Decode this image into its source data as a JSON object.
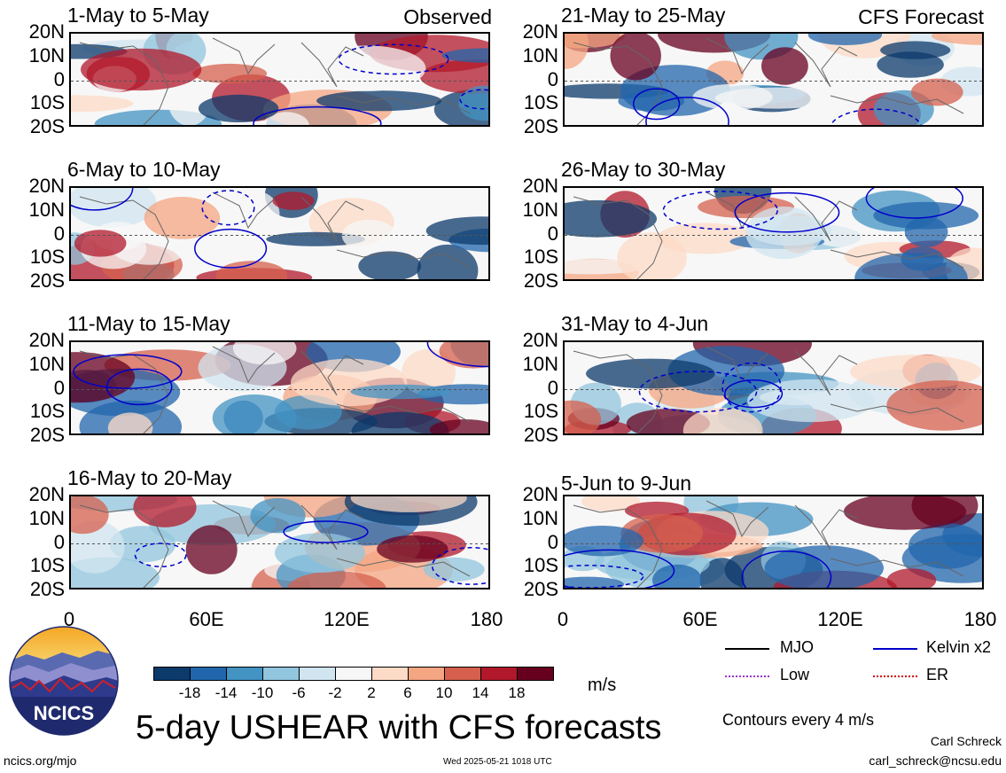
{
  "panels": {
    "observed": [
      {
        "title": "1-May to 5-May",
        "tag": "Observed"
      },
      {
        "title": "6-May to 10-May"
      },
      {
        "title": "11-May to 15-May"
      },
      {
        "title": "16-May to 20-May"
      }
    ],
    "forecast": [
      {
        "title": "21-May to 25-May",
        "tag": "CFS Forecast"
      },
      {
        "title": "26-May to 30-May"
      },
      {
        "title": "31-May to 4-Jun"
      },
      {
        "title": "5-Jun to 9-Jun"
      }
    ]
  },
  "lat_labels": [
    "20N",
    "10N",
    "0",
    "10S",
    "20S"
  ],
  "lon_labels": [
    "0",
    "60E",
    "120E",
    "180"
  ],
  "colorbar": {
    "ticks": [
      "-18",
      "-14",
      "-10",
      "-6",
      "-2",
      "2",
      "6",
      "10",
      "14",
      "18"
    ],
    "colors": [
      "#0c3a6b",
      "#2166ac",
      "#4393c3",
      "#92c5de",
      "#d1e5f0",
      "#f7f7f7",
      "#fddbc7",
      "#f4a582",
      "#d6604d",
      "#b2182b",
      "#67001f"
    ],
    "units": "m/s"
  },
  "legend": {
    "items": [
      {
        "label": "MJO",
        "color": "#000000"
      },
      {
        "label": "Kelvin x2",
        "color": "#0000cc"
      },
      {
        "label": "Low",
        "color": "#9933cc"
      },
      {
        "label": "ER",
        "color": "#cc0000"
      }
    ],
    "contours_note": "Contours every 4 m/s"
  },
  "logo": {
    "text": "NCICS"
  },
  "footer": {
    "title": "5-day USHEAR with CFS forecasts",
    "url": "ncics.org/mjo",
    "timestamp": "Wed 2025-05-21 1018 UTC",
    "author": "Carl Schreck",
    "email": "carl_schreck@ncsu.edu"
  }
}
